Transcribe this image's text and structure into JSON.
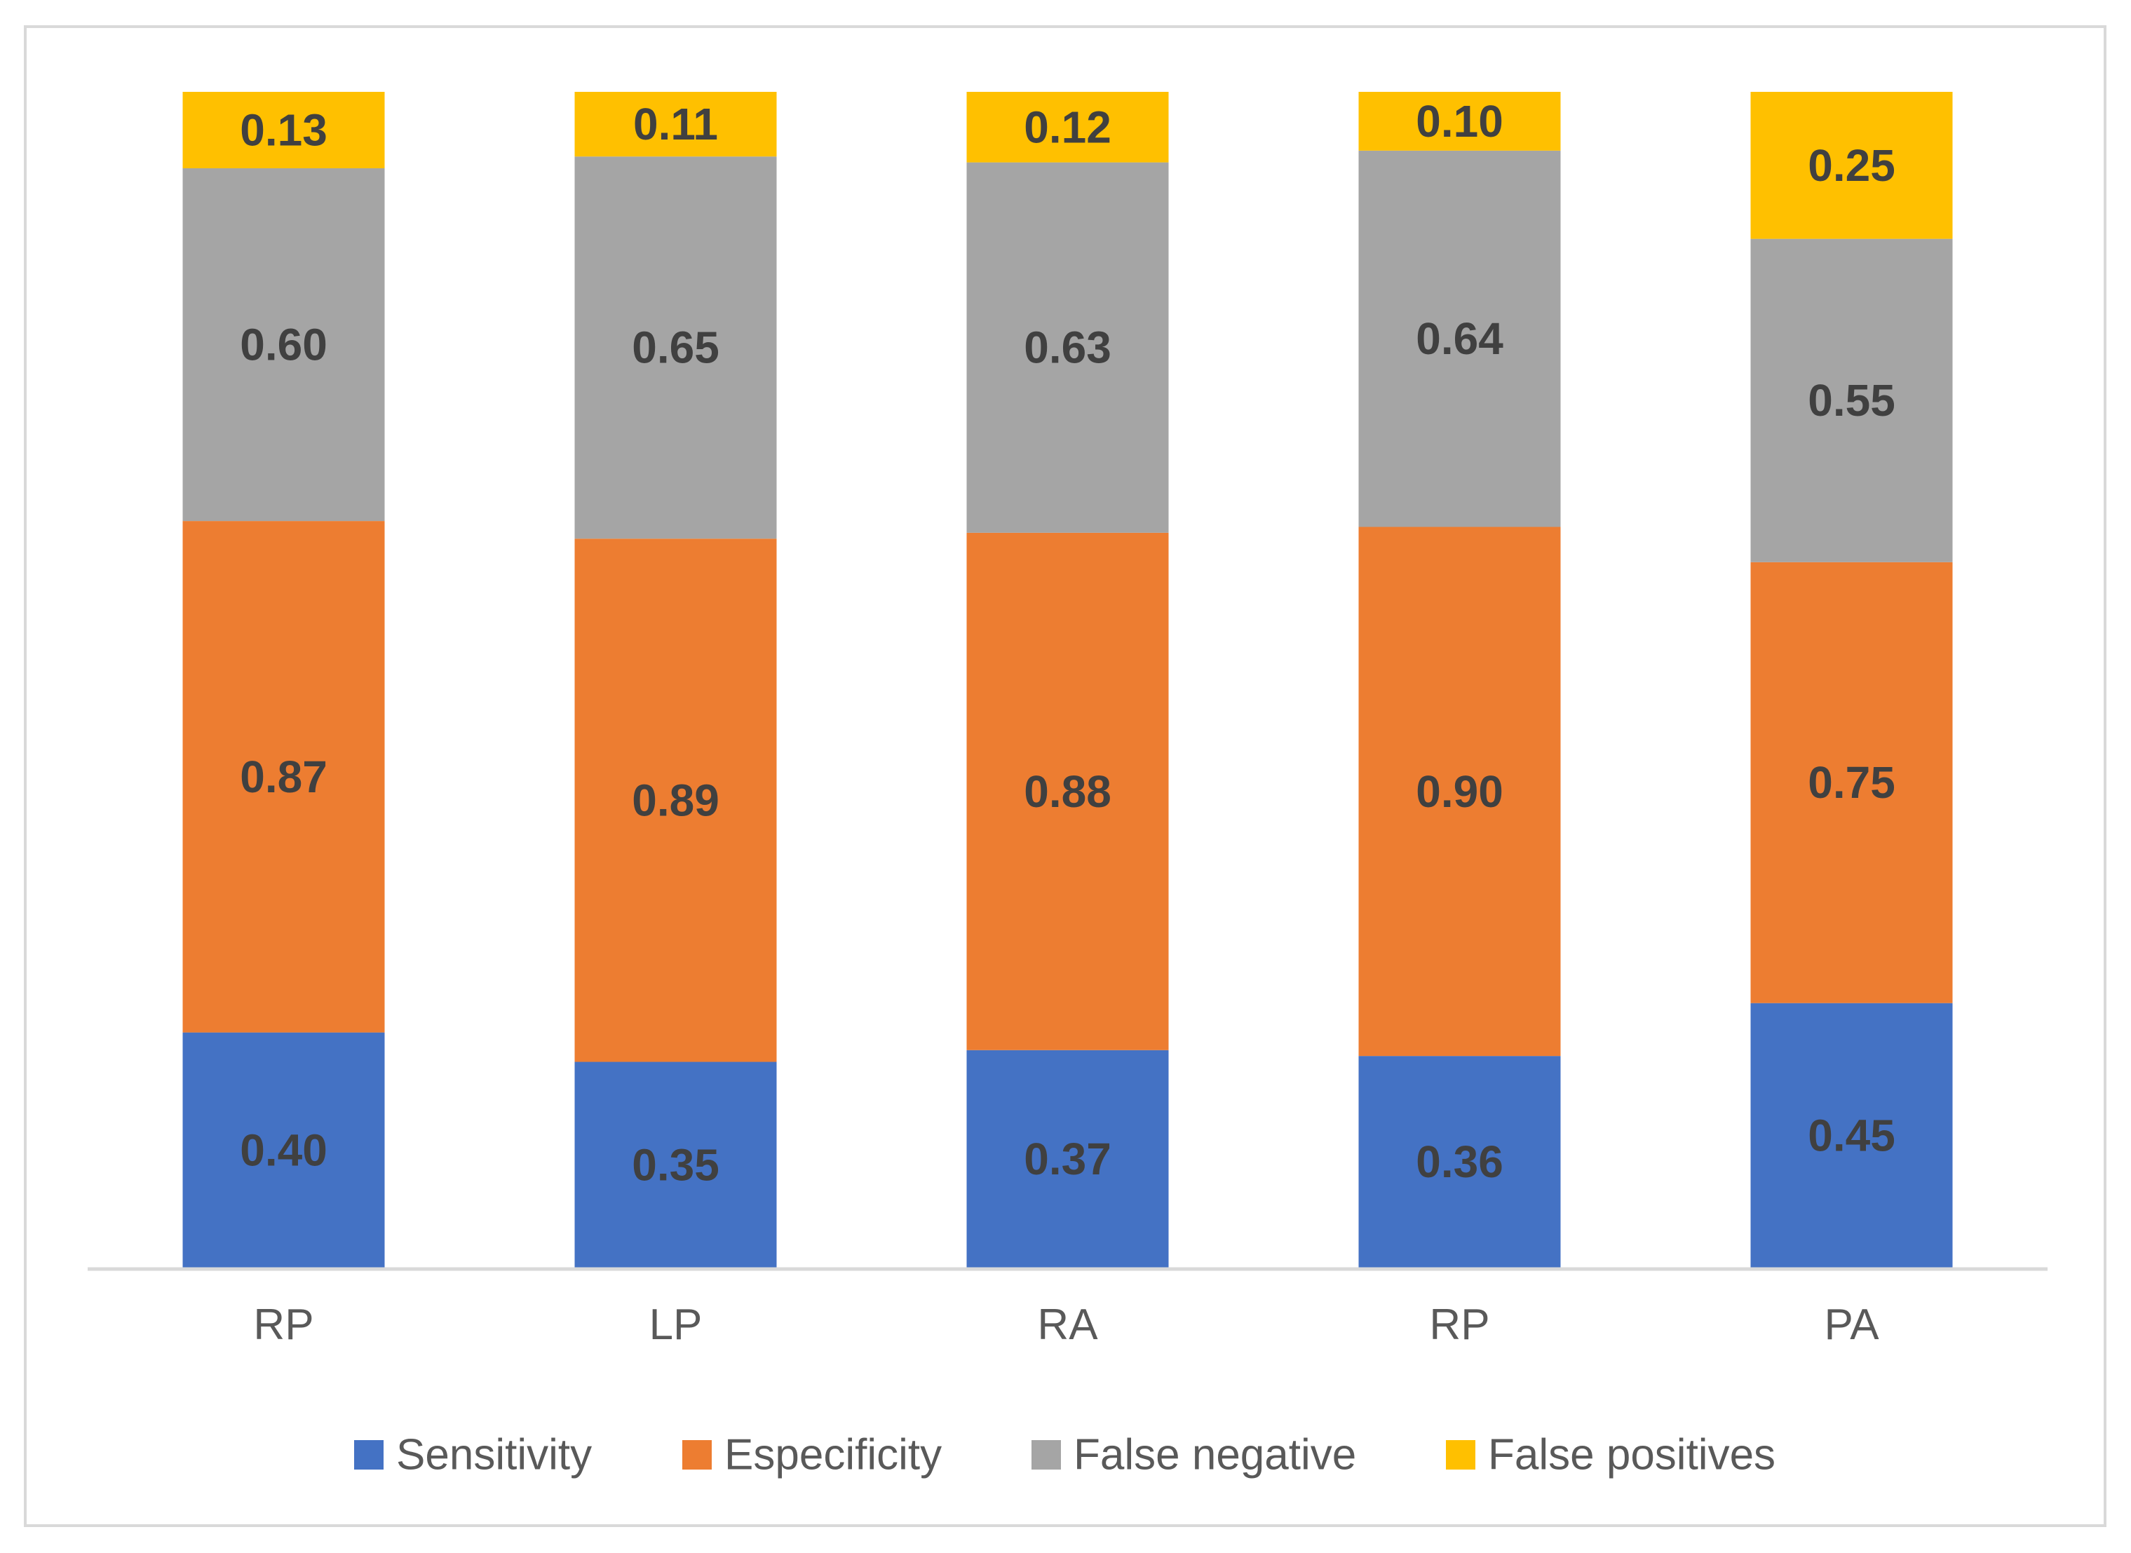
{
  "chart_data": {
    "type": "bar",
    "stacked": true,
    "title": "",
    "xlabel": "",
    "ylabel": "",
    "categories": [
      "RP",
      "LP",
      "RA",
      "RP",
      "PA"
    ],
    "series": [
      {
        "name": "Sensitivity",
        "color": "#4472c4",
        "values": [
          0.4,
          0.35,
          0.37,
          0.36,
          0.45
        ],
        "labels": [
          "0.40",
          "0.35",
          "0.37",
          "0.36",
          "0.45"
        ]
      },
      {
        "name": "Especificity",
        "color": "#ed7d31",
        "values": [
          0.87,
          0.89,
          0.88,
          0.9,
          0.75
        ],
        "labels": [
          "0.87",
          "0.89",
          "0.88",
          "0.90",
          "0.75"
        ]
      },
      {
        "name": "False negative",
        "color": "#a5a5a5",
        "values": [
          0.6,
          0.65,
          0.63,
          0.64,
          0.55
        ],
        "labels": [
          "0.60",
          "0.65",
          "0.63",
          "0.64",
          "0.55"
        ]
      },
      {
        "name": "False positives",
        "color": "#ffc000",
        "values": [
          0.13,
          0.11,
          0.12,
          0.1,
          0.25
        ],
        "labels": [
          "0.13",
          "0.11",
          "0.12",
          "0.10",
          "0.25"
        ]
      }
    ],
    "ylim": [
      0,
      2.0
    ],
    "grid": false,
    "legend_position": "bottom"
  }
}
